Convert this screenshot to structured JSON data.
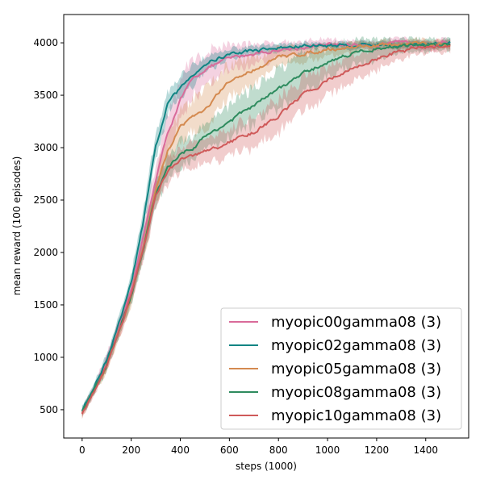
{
  "chart_data": {
    "type": "line",
    "title": "",
    "xlabel": "steps (1000)",
    "ylabel": "mean reward (100 episodes)",
    "xlim": [
      -75,
      1575
    ],
    "ylim": [
      230,
      4270
    ],
    "xticks": [
      0,
      200,
      400,
      600,
      800,
      1000,
      1200,
      1400
    ],
    "yticks": [
      500,
      1000,
      1500,
      2000,
      2500,
      3000,
      3500,
      4000
    ],
    "legend_position": "lower-right",
    "series": [
      {
        "name": "myopic00gamma08 (3)",
        "color": "#d96b9a",
        "x": [
          0,
          50,
          100,
          150,
          200,
          250,
          300,
          350,
          400,
          450,
          500,
          550,
          600,
          700,
          800,
          900,
          1000,
          1100,
          1200,
          1300,
          1400,
          1500
        ],
        "y": [
          480,
          700,
          950,
          1300,
          1650,
          2150,
          2700,
          3150,
          3450,
          3650,
          3750,
          3800,
          3850,
          3900,
          3930,
          3960,
          3975,
          3985,
          3990,
          3990,
          3990,
          3995
        ],
        "band": [
          30,
          40,
          50,
          60,
          80,
          120,
          150,
          180,
          200,
          180,
          160,
          150,
          120,
          100,
          80,
          60,
          50,
          40,
          40,
          40,
          40,
          40
        ]
      },
      {
        "name": "myopic02gamma08 (3)",
        "color": "#118584",
        "x": [
          0,
          50,
          100,
          150,
          200,
          250,
          300,
          350,
          400,
          450,
          500,
          550,
          600,
          700,
          800,
          900,
          1000,
          1100,
          1200,
          1300,
          1400,
          1500
        ],
        "y": [
          500,
          720,
          980,
          1320,
          1700,
          2300,
          3000,
          3430,
          3560,
          3700,
          3800,
          3850,
          3890,
          3930,
          3950,
          3970,
          3975,
          3980,
          3985,
          3985,
          3985,
          3990
        ],
        "band": [
          40,
          40,
          50,
          60,
          80,
          100,
          120,
          100,
          100,
          100,
          80,
          60,
          50,
          40,
          35,
          30,
          30,
          30,
          30,
          30,
          30,
          30
        ]
      },
      {
        "name": "myopic05gamma08 (3)",
        "color": "#d48a50",
        "x": [
          0,
          50,
          100,
          150,
          200,
          250,
          300,
          350,
          400,
          450,
          500,
          550,
          600,
          700,
          800,
          900,
          1000,
          1100,
          1200,
          1300,
          1400,
          1500
        ],
        "y": [
          460,
          680,
          920,
          1250,
          1580,
          2050,
          2600,
          2980,
          3200,
          3300,
          3350,
          3500,
          3620,
          3750,
          3860,
          3900,
          3940,
          3960,
          3975,
          3980,
          3985,
          3990
        ],
        "band": [
          40,
          40,
          50,
          60,
          80,
          120,
          150,
          150,
          150,
          150,
          180,
          180,
          150,
          120,
          90,
          70,
          60,
          50,
          40,
          40,
          40,
          40
        ]
      },
      {
        "name": "myopic08gamma08 (3)",
        "color": "#2e8b5e",
        "x": [
          0,
          50,
          100,
          150,
          200,
          250,
          300,
          350,
          400,
          450,
          500,
          550,
          600,
          700,
          800,
          900,
          1000,
          1100,
          1200,
          1300,
          1400,
          1500
        ],
        "y": [
          470,
          690,
          930,
          1260,
          1590,
          2050,
          2550,
          2800,
          2950,
          3000,
          3100,
          3180,
          3250,
          3400,
          3560,
          3700,
          3820,
          3900,
          3950,
          3970,
          3980,
          3985
        ],
        "band": [
          40,
          40,
          50,
          60,
          80,
          100,
          120,
          120,
          120,
          120,
          130,
          140,
          150,
          170,
          180,
          170,
          150,
          120,
          90,
          70,
          60,
          50
        ]
      },
      {
        "name": "myopic10gamma08 (3)",
        "color": "#cf5a5a",
        "x": [
          0,
          50,
          100,
          150,
          200,
          250,
          300,
          350,
          400,
          450,
          500,
          550,
          600,
          700,
          800,
          900,
          1000,
          1100,
          1200,
          1300,
          1400,
          1500
        ],
        "y": [
          470,
          690,
          930,
          1260,
          1590,
          2050,
          2550,
          2780,
          2880,
          2920,
          2960,
          3000,
          3050,
          3150,
          3300,
          3500,
          3650,
          3750,
          3850,
          3920,
          3960,
          3975
        ],
        "band": [
          40,
          40,
          50,
          60,
          80,
          100,
          120,
          120,
          110,
          110,
          110,
          120,
          130,
          150,
          160,
          150,
          140,
          120,
          100,
          80,
          60,
          50
        ]
      }
    ]
  }
}
